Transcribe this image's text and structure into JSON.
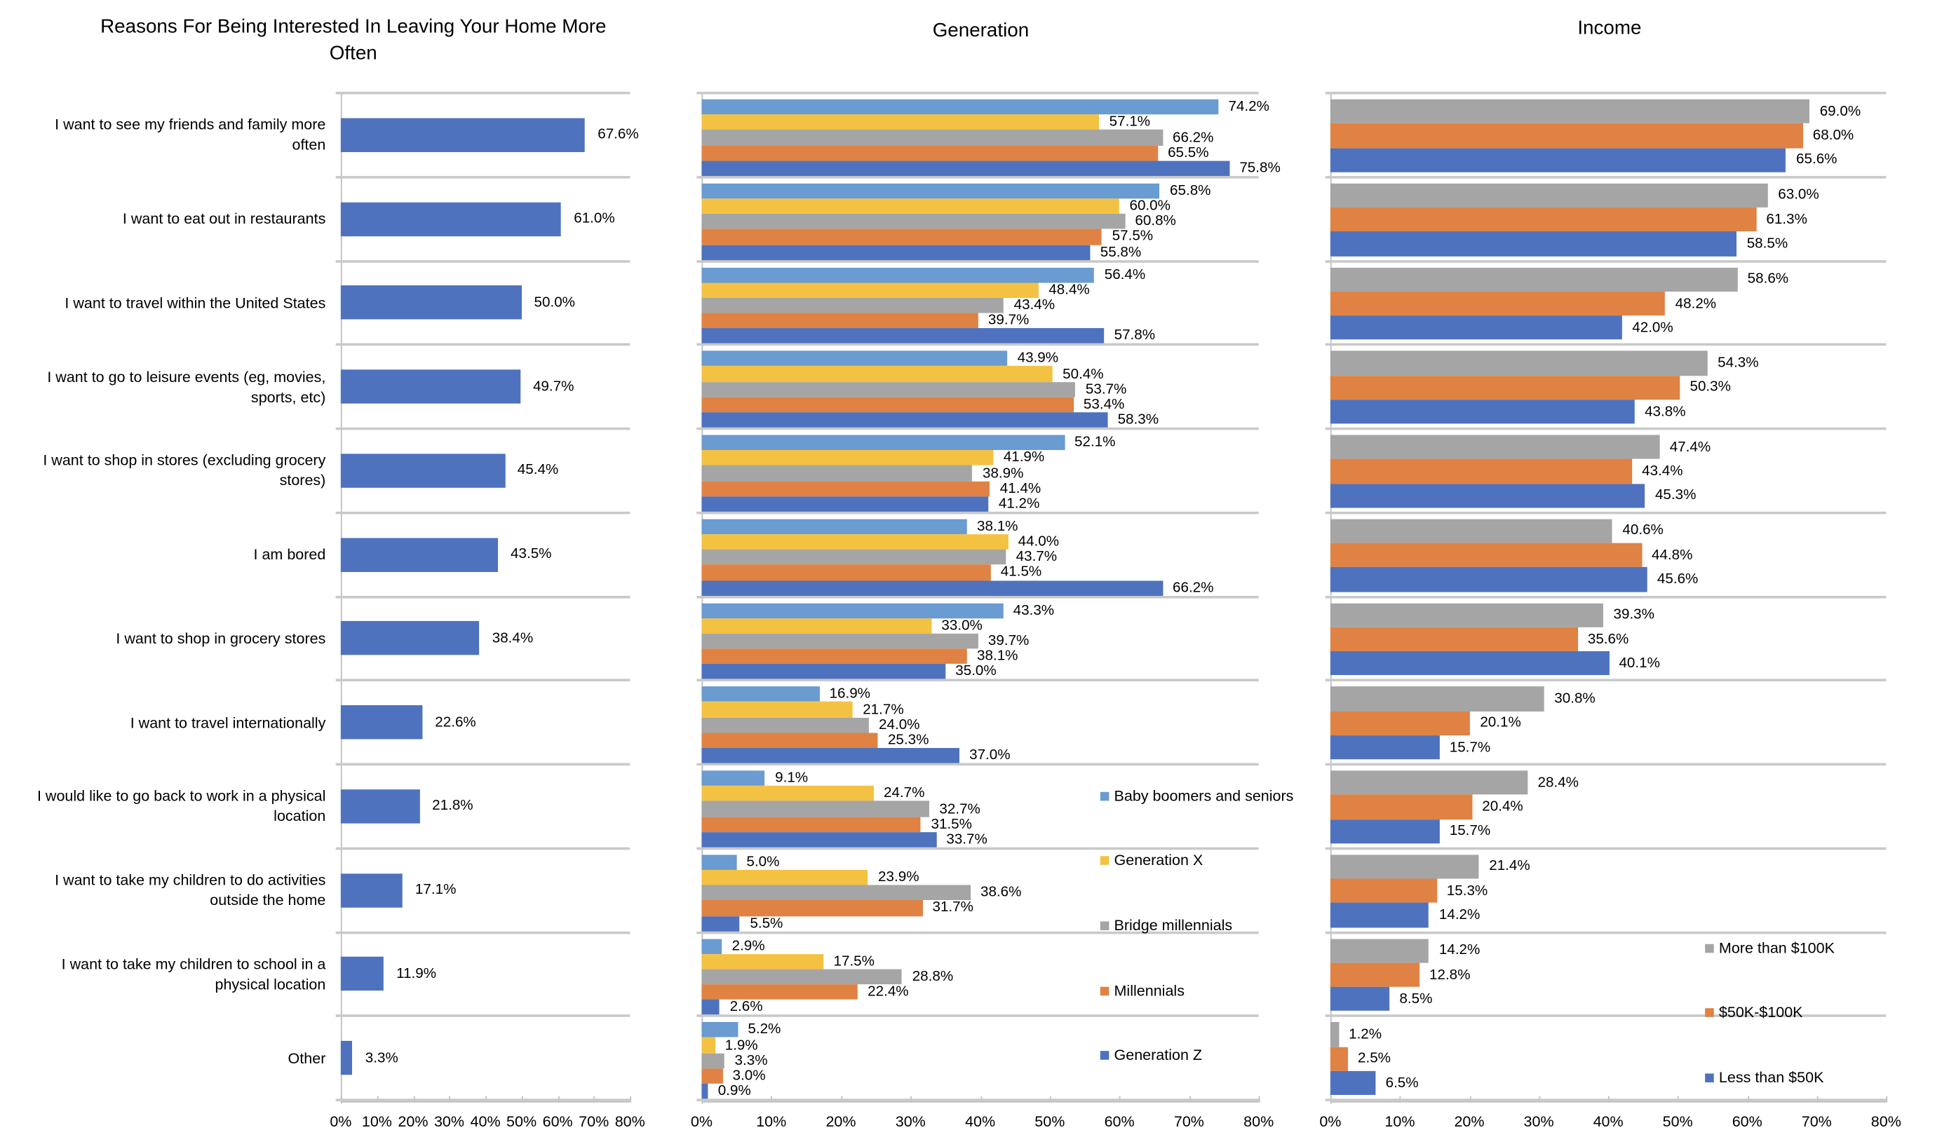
{
  "colors": {
    "overall": "#4E72BE",
    "Baby boomers and seniors": "#6A9BD1",
    "Generation X": "#F4C242",
    "Bridge millennials": "#A5A5A5",
    "Millennials": "#DF8244",
    "Generation Z": "#4E72BE",
    "More than $100K": "#A5A5A5",
    "$50K-$100K": "#DF8244",
    "Less than $50K": "#4E72BE"
  },
  "chart_data": [
    {
      "type": "bar",
      "orientation": "horizontal",
      "title": "Reasons For Being Interested In Leaving Your Home More Often",
      "categories": [
        "I want to see my friends and family more often",
        "I want to eat out in restaurants",
        "I want to travel within the United States",
        "I want to go to leisure events (eg, movies, sports, etc)",
        "I want to shop in stores (excluding grocery stores)",
        "I am bored",
        "I want to shop in grocery stores",
        "I want to travel internationally",
        "I would like to go back to work in a physical location",
        "I want to take my children to do activities outside the home",
        "I want to take my children to school in a physical location",
        "Other"
      ],
      "values": [
        67.6,
        61.0,
        50.0,
        49.7,
        45.4,
        43.5,
        38.4,
        22.6,
        21.8,
        17.1,
        11.9,
        3.3
      ],
      "data_labels": [
        "67.6%",
        "61.0%",
        "50.0%",
        "49.7%",
        "45.4%",
        "43.5%",
        "38.4%",
        "22.6%",
        "21.8%",
        "17.1%",
        "11.9%",
        "3.3%"
      ],
      "xlim": [
        0,
        80
      ],
      "x_ticks": [
        "0%",
        "10%",
        "20%",
        "30%",
        "40%",
        "50%",
        "60%",
        "70%",
        "80%"
      ],
      "grid": false,
      "legend": "none"
    },
    {
      "type": "bar",
      "orientation": "horizontal",
      "title": "Generation",
      "xlim": [
        0,
        80
      ],
      "x_ticks": [
        "0%",
        "10%",
        "20%",
        "30%",
        "40%",
        "50%",
        "60%",
        "70%",
        "80%"
      ],
      "legend": "right",
      "series": [
        {
          "name": "Baby boomers and seniors",
          "values": [
            74.2,
            65.8,
            56.4,
            43.9,
            52.1,
            38.1,
            43.3,
            16.9,
            9.1,
            5.0,
            2.9,
            5.2
          ]
        },
        {
          "name": "Generation X",
          "values": [
            57.1,
            60.0,
            48.4,
            50.4,
            41.9,
            44.0,
            33.0,
            21.7,
            24.7,
            23.9,
            17.5,
            1.9
          ]
        },
        {
          "name": "Bridge millennials",
          "values": [
            66.2,
            60.8,
            43.4,
            53.7,
            38.9,
            43.7,
            39.7,
            24.0,
            32.7,
            38.6,
            28.8,
            3.3
          ]
        },
        {
          "name": "Millennials",
          "values": [
            65.5,
            57.5,
            39.7,
            53.4,
            41.4,
            41.5,
            38.1,
            25.3,
            31.5,
            31.7,
            22.4,
            3.0
          ]
        },
        {
          "name": "Generation Z",
          "values": [
            75.8,
            55.8,
            57.8,
            58.3,
            41.2,
            66.2,
            35.0,
            37.0,
            33.7,
            5.5,
            2.6,
            0.9
          ]
        }
      ]
    },
    {
      "type": "bar",
      "orientation": "horizontal",
      "title": "Income",
      "xlim": [
        0,
        80
      ],
      "x_ticks": [
        "0%",
        "10%",
        "20%",
        "30%",
        "40%",
        "50%",
        "60%",
        "70%",
        "80%"
      ],
      "legend": "bottom-right",
      "series": [
        {
          "name": "More than $100K",
          "values": [
            69.0,
            63.0,
            58.6,
            54.3,
            47.4,
            40.6,
            39.3,
            30.8,
            28.4,
            21.4,
            14.2,
            1.2
          ]
        },
        {
          "name": "$50K-$100K",
          "values": [
            68.0,
            61.3,
            48.2,
            50.3,
            43.4,
            44.8,
            35.6,
            20.1,
            20.4,
            15.3,
            12.8,
            2.5
          ]
        },
        {
          "name": "Less than $50K",
          "values": [
            65.6,
            58.5,
            42.0,
            43.8,
            45.3,
            45.6,
            40.1,
            15.7,
            15.7,
            14.2,
            8.5,
            6.5
          ]
        }
      ]
    }
  ]
}
